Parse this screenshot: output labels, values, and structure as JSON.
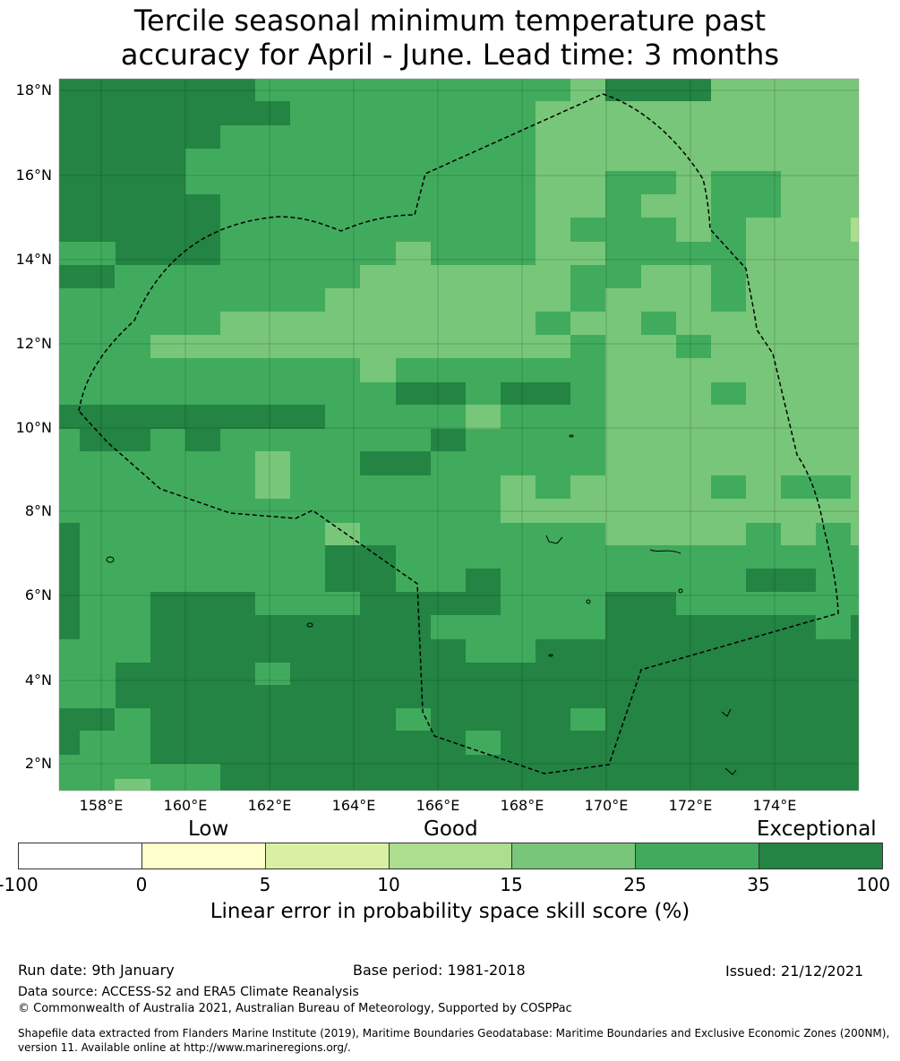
{
  "title": {
    "line1": "Tercile seasonal minimum temperature past",
    "line2": "accuracy for April - June. Lead time: 3 months"
  },
  "map": {
    "lat_labels": [
      "18°N",
      "16°N",
      "14°N",
      "12°N",
      "10°N",
      "8°N",
      "6°N",
      "4°N",
      "2°N"
    ],
    "lon_labels": [
      "158°E",
      "160°E",
      "162°E",
      "164°E",
      "166°E",
      "168°E",
      "170°E",
      "172°E",
      "174°E"
    ],
    "boundary": "eez-dashed-line",
    "colors": {
      "exceptional": "#238443",
      "c25_35": "#41ab5d",
      "c15_25": "#78c679",
      "c10_15": "#addd8e"
    }
  },
  "colorbar": {
    "word_low": "Low",
    "word_good": "Good",
    "word_exceptional": "Exceptional",
    "ticks": [
      "-100",
      "0",
      "5",
      "10",
      "15",
      "25",
      "35",
      "100"
    ],
    "colors": [
      "#ffffff",
      "#ffffcc",
      "#d9f0a3",
      "#addd8e",
      "#78c679",
      "#41ab5d",
      "#238443"
    ],
    "label": "Linear error in probability space skill score (%)"
  },
  "footer": {
    "run_date": "Run date: 9th January",
    "base_period": "Base period: 1981-2018",
    "issued": "Issued: 21/12/2021",
    "data_source": "Data source: ACCESS-S2 and ERA5 Climate Reanalysis",
    "copyright": "© Commonwealth of Australia 2021, Australian Bureau of Meteorology, Supported by COSPPac",
    "shapefile_1": "Shapefile data extracted from Flanders Marine Institute (2019), Maritime Boundaries Geodatabase: Maritime Boundaries and Exclusive Economic Zones (200NM),",
    "shapefile_2": "version 11. Available online at http://www.marineregions.org/."
  }
}
